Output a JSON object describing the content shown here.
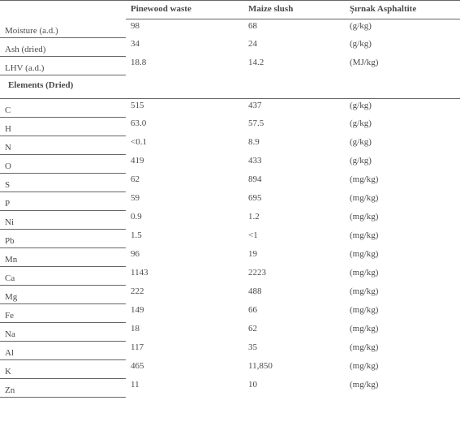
{
  "headers": {
    "label": "",
    "pinewood": "Pinewood waste",
    "maize": "Maize slush",
    "unit": "Şırnak Asphaltite"
  },
  "section_label": "Elements (Dried)",
  "rows_top": [
    {
      "label": "Moisture (a.d.)",
      "pine": "98",
      "maize": "68",
      "unit": "(g/kg)"
    },
    {
      "label": "Ash (dried)",
      "pine": "34",
      "maize": "24",
      "unit": "(g/kg)"
    },
    {
      "label": "LHV (a.d.)",
      "pine": "18.8",
      "maize": "14.2",
      "unit": "(MJ/kg)"
    }
  ],
  "rows_elem": [
    {
      "label": "C",
      "pine": "515",
      "maize": "437",
      "unit": "(g/kg)"
    },
    {
      "label": "H",
      "pine": "63.0",
      "maize": "57.5",
      "unit": "(g/kg)"
    },
    {
      "label": "N",
      "pine": "<0.1",
      "maize": "8.9",
      "unit": "(g/kg)"
    },
    {
      "label": "O",
      "pine": "419",
      "maize": "433",
      "unit": "(g/kg)"
    },
    {
      "label": "S",
      "pine": "62",
      "maize": "894",
      "unit": "(mg/kg)"
    },
    {
      "label": "P",
      "pine": "59",
      "maize": "695",
      "unit": "(mg/kg)"
    },
    {
      "label": "Ni",
      "pine": "0.9",
      "maize": "1.2",
      "unit": "(mg/kg)"
    },
    {
      "label": "Pb",
      "pine": "1.5",
      "maize": "<1",
      "unit": "(mg/kg)"
    },
    {
      "label": "Mn",
      "pine": "96",
      "maize": "19",
      "unit": "(mg/kg)"
    },
    {
      "label": "Ca",
      "pine": "1143",
      "maize": "2223",
      "unit": "(mg/kg)"
    },
    {
      "label": "Mg",
      "pine": "222",
      "maize": "488",
      "unit": "(mg/kg)"
    },
    {
      "label": "Fe",
      "pine": "149",
      "maize": "66",
      "unit": "(mg/kg)"
    },
    {
      "label": "Na",
      "pine": "18",
      "maize": "62",
      "unit": "(mg/kg)"
    },
    {
      "label": "Al",
      "pine": "117",
      "maize": "35",
      "unit": "(mg/kg)"
    },
    {
      "label": "K",
      "pine": "465",
      "maize": "11,850",
      "unit": "(mg/kg)"
    },
    {
      "label": "Zn",
      "pine": "11",
      "maize": "10",
      "unit": "(mg/kg)"
    }
  ]
}
